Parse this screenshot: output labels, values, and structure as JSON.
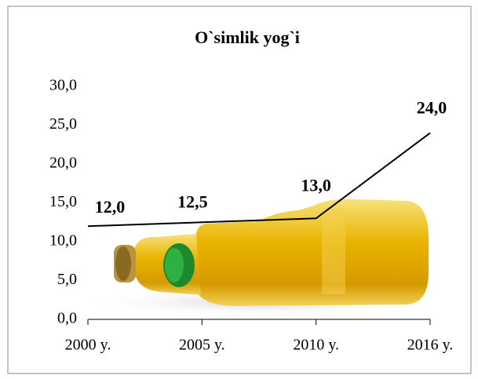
{
  "chart_data": {
    "type": "line",
    "title": "O`simlik yog`i",
    "categories": [
      "2000 y.",
      "2005 y.",
      "2010 y.",
      "2016 y."
    ],
    "values": [
      12.0,
      12.5,
      13.0,
      24.0
    ],
    "value_labels": [
      "12,0",
      "12,5",
      "13,0",
      "24,0"
    ],
    "color": "#000000",
    "ylim": [
      0,
      30
    ],
    "yticks": [
      {
        "value": 0,
        "label": "0,0"
      },
      {
        "value": 5,
        "label": "5,0"
      },
      {
        "value": 10,
        "label": "10,0"
      },
      {
        "value": 15,
        "label": "15,0"
      },
      {
        "value": 20,
        "label": "20,0"
      },
      {
        "value": 25,
        "label": "25,0"
      },
      {
        "value": 30,
        "label": "30,0"
      }
    ],
    "grid": false
  }
}
